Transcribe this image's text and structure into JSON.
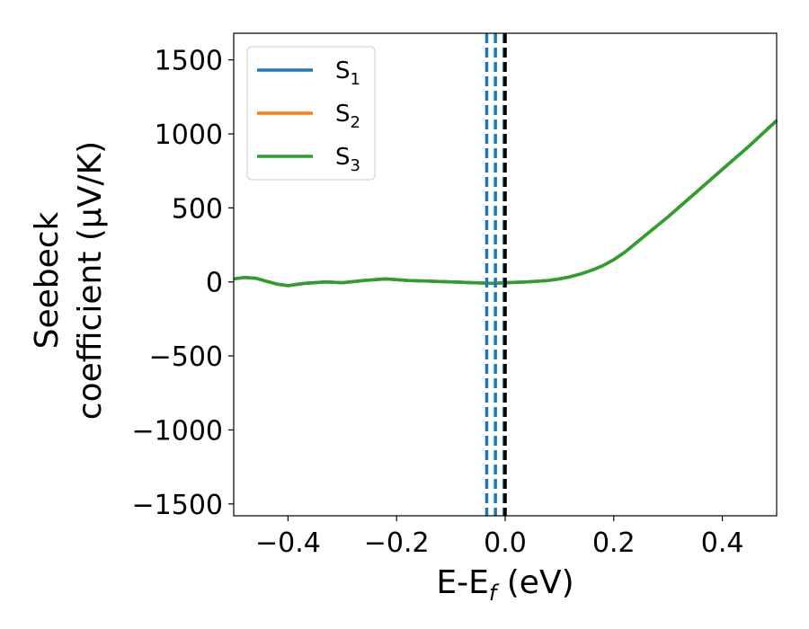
{
  "chart_data": {
    "type": "line",
    "xlabel_main": "E-E",
    "xlabel_sub": "f",
    "xlabel_unit": " (eV)",
    "ylabel_line1": "Seebeck",
    "ylabel_line2": "coefficient  (μV/K)",
    "xlim": [
      -0.5,
      0.5
    ],
    "ylim": [
      -1580,
      1680
    ],
    "x_ticks": [
      -0.4,
      -0.2,
      0.0,
      0.2,
      0.4
    ],
    "x_tick_labels": [
      "−0.4",
      "−0.2",
      "0.0",
      "0.2",
      "0.4"
    ],
    "y_ticks": [
      -1500,
      -1000,
      -500,
      0,
      500,
      1000,
      1500
    ],
    "y_tick_labels": [
      "−1500",
      "−1000",
      "−500",
      "0",
      "500",
      "1000",
      "1500"
    ],
    "legend_position": "top-left",
    "series": [
      {
        "name": "S",
        "sub": "1",
        "color": "#1f77b4",
        "x": [
          -0.5,
          -0.48,
          -0.46,
          -0.44,
          -0.42,
          -0.4,
          -0.37,
          -0.33,
          -0.3,
          -0.26,
          -0.22,
          -0.18,
          -0.14,
          -0.1,
          -0.06,
          -0.02,
          0.0,
          0.04,
          0.08,
          0.1,
          0.12,
          0.14,
          0.16,
          0.18,
          0.2,
          0.22,
          0.25,
          0.3,
          0.35,
          0.4,
          0.45,
          0.5
        ],
        "y": [
          20,
          30,
          25,
          5,
          -15,
          -25,
          -10,
          0,
          -5,
          10,
          20,
          10,
          5,
          0,
          -5,
          -10,
          -5,
          0,
          10,
          20,
          35,
          55,
          80,
          110,
          150,
          200,
          290,
          440,
          600,
          760,
          920,
          1090
        ]
      },
      {
        "name": "S",
        "sub": "2",
        "color": "#ff7f0e",
        "x": [
          -0.5,
          -0.48,
          -0.46,
          -0.44,
          -0.42,
          -0.4,
          -0.37,
          -0.33,
          -0.3,
          -0.26,
          -0.22,
          -0.18,
          -0.14,
          -0.1,
          -0.06,
          -0.02,
          0.0,
          0.04,
          0.08,
          0.1,
          0.12,
          0.14,
          0.16,
          0.18,
          0.2,
          0.22,
          0.25,
          0.3,
          0.35,
          0.4,
          0.45,
          0.5
        ],
        "y": [
          20,
          30,
          25,
          5,
          -15,
          -25,
          -10,
          0,
          -5,
          10,
          20,
          10,
          5,
          0,
          -5,
          -10,
          -5,
          0,
          10,
          20,
          35,
          55,
          80,
          110,
          150,
          200,
          290,
          440,
          600,
          760,
          920,
          1090
        ]
      },
      {
        "name": "S",
        "sub": "3",
        "color": "#2ca02c",
        "x": [
          -0.5,
          -0.48,
          -0.46,
          -0.44,
          -0.42,
          -0.4,
          -0.37,
          -0.33,
          -0.3,
          -0.26,
          -0.22,
          -0.18,
          -0.14,
          -0.1,
          -0.06,
          -0.02,
          0.0,
          0.04,
          0.08,
          0.1,
          0.12,
          0.14,
          0.16,
          0.18,
          0.2,
          0.22,
          0.25,
          0.3,
          0.35,
          0.4,
          0.45,
          0.5
        ],
        "y": [
          20,
          30,
          25,
          5,
          -15,
          -25,
          -10,
          0,
          -5,
          10,
          20,
          10,
          5,
          0,
          -5,
          -10,
          -5,
          0,
          10,
          20,
          35,
          55,
          80,
          110,
          150,
          200,
          290,
          440,
          600,
          760,
          920,
          1090
        ]
      }
    ],
    "vlines": [
      {
        "x": -0.034,
        "color": "#1f77b4",
        "style": "dashed"
      },
      {
        "x": -0.018,
        "color": "#1f77b4",
        "style": "dashed"
      },
      {
        "x": -0.002,
        "color": "#1f77b4",
        "style": "dashed"
      },
      {
        "x": 0.0,
        "color": "#000000",
        "style": "dashed"
      }
    ]
  }
}
